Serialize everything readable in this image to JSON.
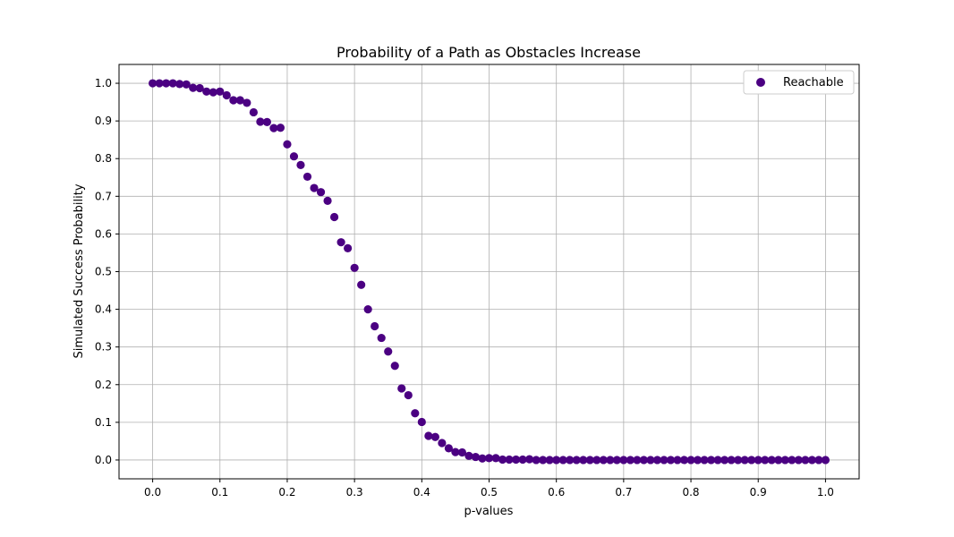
{
  "chart_data": {
    "type": "scatter",
    "title": "Probability of a Path as Obstacles Increase",
    "xlabel": "p-values",
    "ylabel": "Simulated Success Probability",
    "xlim": [
      -0.05,
      1.05
    ],
    "ylim": [
      -0.05,
      1.05
    ],
    "xticks": [
      "0.0",
      "0.1",
      "0.2",
      "0.3",
      "0.4",
      "0.5",
      "0.6",
      "0.7",
      "0.8",
      "0.9",
      "1.0"
    ],
    "yticks": [
      "0.0",
      "0.1",
      "0.2",
      "0.3",
      "0.4",
      "0.5",
      "0.6",
      "0.7",
      "0.8",
      "0.9",
      "1.0"
    ],
    "grid": true,
    "legend_position": "top-right",
    "series": [
      {
        "name": "Reachable",
        "color": "#4b0082",
        "x": [
          0.0,
          0.01,
          0.02,
          0.03,
          0.04,
          0.05,
          0.06,
          0.07,
          0.08,
          0.09,
          0.1,
          0.11,
          0.12,
          0.13,
          0.14,
          0.15,
          0.16,
          0.17,
          0.18,
          0.19,
          0.2,
          0.21,
          0.22,
          0.23,
          0.24,
          0.25,
          0.26,
          0.27,
          0.28,
          0.29,
          0.3,
          0.31,
          0.32,
          0.33,
          0.34,
          0.35,
          0.36,
          0.37,
          0.38,
          0.39,
          0.4,
          0.41,
          0.42,
          0.43,
          0.44,
          0.45,
          0.46,
          0.47,
          0.48,
          0.49,
          0.5,
          0.51,
          0.52,
          0.53,
          0.54,
          0.55,
          0.56,
          0.57,
          0.58,
          0.59,
          0.6,
          0.61,
          0.62,
          0.63,
          0.64,
          0.65,
          0.66,
          0.67,
          0.68,
          0.69,
          0.7,
          0.71,
          0.72,
          0.73,
          0.74,
          0.75,
          0.76,
          0.77,
          0.78,
          0.79,
          0.8,
          0.81,
          0.82,
          0.83,
          0.84,
          0.85,
          0.86,
          0.87,
          0.88,
          0.89,
          0.9,
          0.91,
          0.92,
          0.93,
          0.94,
          0.95,
          0.96,
          0.97,
          0.98,
          0.99,
          1.0
        ],
        "y": [
          1.0,
          1.0,
          1.0,
          1.0,
          0.998,
          0.997,
          0.988,
          0.987,
          0.978,
          0.976,
          0.978,
          0.968,
          0.955,
          0.955,
          0.948,
          0.923,
          0.898,
          0.897,
          0.881,
          0.882,
          0.838,
          0.806,
          0.783,
          0.752,
          0.722,
          0.711,
          0.688,
          0.645,
          0.578,
          0.562,
          0.51,
          0.465,
          0.4,
          0.355,
          0.324,
          0.288,
          0.25,
          0.19,
          0.172,
          0.124,
          0.101,
          0.064,
          0.061,
          0.045,
          0.031,
          0.021,
          0.02,
          0.011,
          0.008,
          0.004,
          0.005,
          0.005,
          0.001,
          0.001,
          0.001,
          0.001,
          0.002,
          0.0,
          0.0,
          0.0,
          0.0,
          0.0,
          0.0,
          0.0,
          0.0,
          0.0,
          0.0,
          0.0,
          0.0,
          0.0,
          0.0,
          0.0,
          0.0,
          0.0,
          0.0,
          0.0,
          0.0,
          0.0,
          0.0,
          0.0,
          0.0,
          0.0,
          0.0,
          0.0,
          0.0,
          0.0,
          0.0,
          0.0,
          0.0,
          0.0,
          0.0,
          0.0,
          0.0,
          0.0,
          0.0,
          0.0,
          0.0,
          0.0,
          0.0,
          0.0,
          0.0
        ]
      }
    ]
  }
}
